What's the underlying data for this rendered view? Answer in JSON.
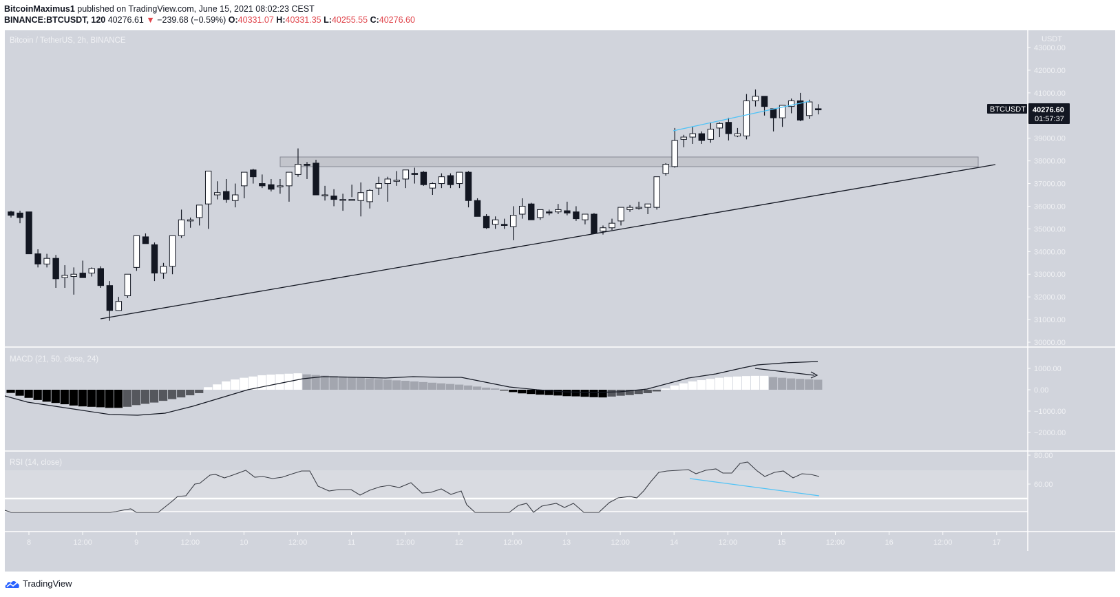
{
  "header": {
    "author": "BitcoinMaximus1",
    "published": "published on TradingView.com, June 15, 2021 08:02:23 CEST",
    "symbol_line_bold": "BINANCE:BTCUSDT, 120",
    "last": "40276.61",
    "change": "−239.68 (−0.59%)",
    "o_label": "O:",
    "o": "40331.07",
    "h_label": "H:",
    "h": "40331.35",
    "l_label": "L:",
    "l": "40255.55",
    "c_label": "C:",
    "c": "40276.60"
  },
  "chart_title": "Bitcoin / TetherUS, 2h, BINANCE",
  "price_axis": {
    "currency": "USDT",
    "ticks": [
      "43000.00",
      "42000.00",
      "41000.00",
      "39000.00",
      "38000.00",
      "37000.00",
      "36000.00",
      "35000.00",
      "34000.00",
      "33000.00",
      "32000.00",
      "31000.00",
      "30000.00"
    ],
    "last_label": "BTCUSDT",
    "last_price": "40276.60",
    "countdown": "01:57:37"
  },
  "macd": {
    "title": "MACD (21, 50, close, 24)",
    "ticks": [
      "1000.00",
      "0.00",
      "−1000.00",
      "−2000.00"
    ]
  },
  "rsi": {
    "title": "RSI (14, close)",
    "ticks": [
      "80.00",
      "60.00"
    ]
  },
  "time_axis": [
    "8",
    "12:00",
    "9",
    "12:00",
    "10",
    "12:00",
    "11",
    "12:00",
    "12",
    "12:00",
    "13",
    "12:00",
    "14",
    "12:00",
    "15",
    "12:00",
    "16",
    "12:00",
    "17"
  ],
  "footer": {
    "brand": "TradingView"
  },
  "colors": {
    "background": "#d1d4dc",
    "bull_body": "#ffffff",
    "bear_body": "#131722",
    "trendline": "#131722",
    "blue_line": "#4fc3f7",
    "zone": "#c3c5cc",
    "negative": "#e0444b"
  },
  "chart_data": {
    "type": "candlestick",
    "title": "Bitcoin / TetherUS, 2h, BINANCE",
    "interval": "2h",
    "ylim": [
      29800,
      43500
    ],
    "candles_ohlc": [
      [
        35750,
        35800,
        35500,
        35600
      ],
      [
        35700,
        35800,
        35250,
        35500
      ],
      [
        35750,
        35750,
        33900,
        33900
      ],
      [
        33900,
        34100,
        33300,
        33450
      ],
      [
        33450,
        33900,
        33300,
        33700
      ],
      [
        33700,
        33850,
        32400,
        32800
      ],
      [
        32850,
        33400,
        32400,
        32950
      ],
      [
        32900,
        33300,
        32100,
        33000
      ],
      [
        33050,
        33600,
        32900,
        32850
      ],
      [
        33050,
        33300,
        32900,
        33250
      ],
      [
        33250,
        33350,
        32400,
        32500
      ],
      [
        32500,
        32700,
        30950,
        31400
      ],
      [
        31400,
        32000,
        31400,
        31800
      ],
      [
        32050,
        32700,
        31950,
        33000
      ],
      [
        33300,
        34100,
        33150,
        34700
      ],
      [
        34650,
        34800,
        34350,
        34350
      ],
      [
        34300,
        34400,
        32700,
        33050
      ],
      [
        33050,
        33500,
        32800,
        33350
      ],
      [
        33350,
        34550,
        33000,
        34700
      ],
      [
        34700,
        35850,
        34600,
        35400
      ],
      [
        35350,
        35500,
        35050,
        35400
      ],
      [
        35500,
        35850,
        35150,
        36050
      ],
      [
        36100,
        37450,
        35000,
        37550
      ],
      [
        36500,
        37100,
        36300,
        36600
      ],
      [
        36650,
        37200,
        36150,
        36300
      ],
      [
        36250,
        37000,
        35950,
        36500
      ],
      [
        36900,
        37200,
        36350,
        37500
      ],
      [
        37600,
        37650,
        37000,
        37300
      ],
      [
        37000,
        37400,
        36800,
        36900
      ],
      [
        36950,
        37200,
        36650,
        36750
      ],
      [
        36850,
        37200,
        36550,
        36900
      ],
      [
        36900,
        37500,
        36200,
        37500
      ],
      [
        37400,
        38550,
        37300,
        37850
      ],
      [
        37850,
        37950,
        37200,
        37800
      ],
      [
        37900,
        38050,
        36700,
        36500
      ],
      [
        36500,
        36900,
        36250,
        36500
      ],
      [
        36450,
        36750,
        36000,
        36300
      ],
      [
        36300,
        36550,
        35800,
        36300
      ],
      [
        36300,
        36950,
        36400,
        36300
      ],
      [
        36250,
        37050,
        35550,
        36600
      ],
      [
        36200,
        36750,
        35900,
        36700
      ],
      [
        36800,
        37300,
        36500,
        37000
      ],
      [
        37000,
        37300,
        36200,
        37200
      ],
      [
        37100,
        37550,
        36900,
        37150
      ],
      [
        37200,
        37600,
        36800,
        37600
      ],
      [
        37450,
        37700,
        37000,
        37400
      ],
      [
        37500,
        37550,
        36900,
        36950
      ],
      [
        36800,
        37050,
        36500,
        37000
      ],
      [
        37000,
        37450,
        36800,
        37300
      ],
      [
        37350,
        37450,
        36800,
        36950
      ],
      [
        37000,
        37500,
        36800,
        37500
      ],
      [
        37500,
        37550,
        35950,
        36250
      ],
      [
        36250,
        36350,
        35550,
        35550
      ],
      [
        35550,
        35650,
        35000,
        35050
      ],
      [
        35200,
        35550,
        35000,
        35400
      ],
      [
        35200,
        35450,
        35000,
        35150
      ],
      [
        35100,
        36000,
        34500,
        35600
      ],
      [
        35650,
        36350,
        35450,
        36000
      ],
      [
        36100,
        36150,
        35650,
        35400
      ],
      [
        35500,
        35800,
        35400,
        35850
      ],
      [
        35750,
        35850,
        35600,
        35700
      ],
      [
        35750,
        36100,
        35650,
        35850
      ],
      [
        35800,
        36200,
        35600,
        35700
      ],
      [
        35750,
        36000,
        35350,
        35450
      ],
      [
        35400,
        35650,
        35200,
        35650
      ],
      [
        35650,
        35700,
        34800,
        34800
      ],
      [
        34900,
        35150,
        34750,
        35050
      ],
      [
        35050,
        35450,
        34950,
        35250
      ],
      [
        35350,
        35950,
        35150,
        35950
      ],
      [
        35850,
        36050,
        35750,
        35950
      ],
      [
        35950,
        36200,
        35850,
        35950
      ],
      [
        35950,
        36050,
        35650,
        36100
      ],
      [
        35950,
        37300,
        35850,
        37300
      ],
      [
        37450,
        37900,
        37350,
        37850
      ],
      [
        37750,
        39450,
        37700,
        38900
      ],
      [
        38950,
        39150,
        38600,
        39050
      ],
      [
        39050,
        39500,
        38750,
        39200
      ],
      [
        39200,
        39300,
        38750,
        38900
      ],
      [
        38950,
        39700,
        38800,
        39400
      ],
      [
        39450,
        39700,
        39050,
        39650
      ],
      [
        39700,
        39900,
        38900,
        39200
      ],
      [
        39100,
        39450,
        39050,
        39200
      ],
      [
        39100,
        40950,
        38950,
        40650
      ],
      [
        40650,
        41150,
        40400,
        40850
      ],
      [
        40850,
        40800,
        40000,
        40400
      ],
      [
        40300,
        40300,
        39300,
        39900
      ],
      [
        39900,
        40400,
        39500,
        40450
      ],
      [
        40400,
        40750,
        40100,
        40650
      ],
      [
        40650,
        41000,
        39750,
        39800
      ],
      [
        40000,
        40700,
        39850,
        40600
      ],
      [
        40300,
        40500,
        40050,
        40250
      ]
    ],
    "annotations": [
      {
        "type": "trendline",
        "label": "ascending support",
        "from": [
          146,
          463
        ],
        "to": [
          1446,
          239
        ]
      },
      {
        "type": "rectangle",
        "label": "resistance zone",
        "y_range": [
          37700,
          38150
        ]
      },
      {
        "type": "trendline",
        "color": "#4fc3f7",
        "label": "price higher highs"
      },
      {
        "type": "trendline",
        "color": "#4fc3f7",
        "label": "RSI lower highs (bearish divergence)"
      },
      {
        "type": "arrow",
        "label": "MACD histogram declining"
      }
    ],
    "macd_histogram_approx": "negative (black/dark gray) Jun 8-9, positive (white) Jun 9-10, fading gray Jun 10-12, small negative Jun 12-13, positive rising Jun 14-15, fading gray at end",
    "rsi_range": [
      40,
      80
    ],
    "xlabel": "",
    "ylabel": "USDT"
  }
}
